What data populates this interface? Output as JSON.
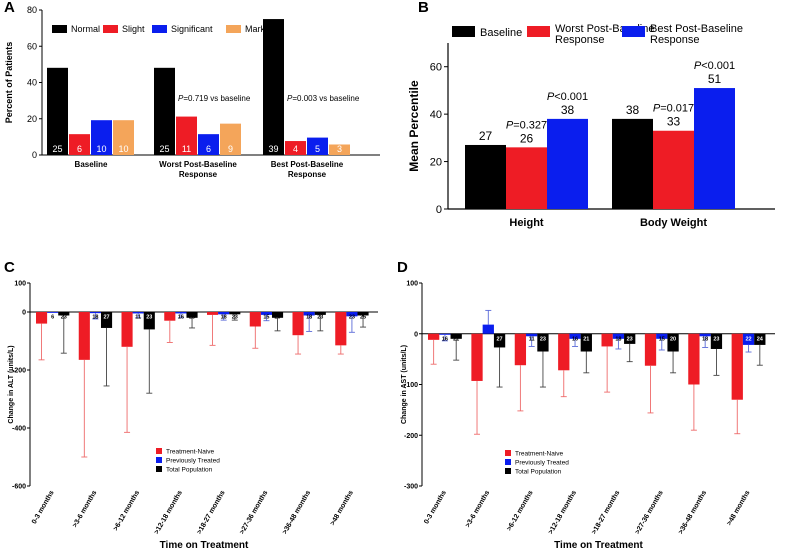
{
  "colors": {
    "black": "#000000",
    "red": "#ee1c25",
    "blue": "#0a1eee",
    "orange": "#f4a55a",
    "errRed": "#ee6a6a",
    "errBlue": "#5a6ad8",
    "errBlack": "#444444"
  },
  "chart_data": [
    {
      "id": "A",
      "panel_label": "A",
      "type": "bar",
      "ylabel": "Percent of Patients",
      "ylim": [
        0,
        80
      ],
      "yticks": [
        "0",
        "20",
        "40",
        "60",
        "80"
      ],
      "legend": [
        "Normal",
        "Slight",
        "Significant",
        "Marked"
      ],
      "categories": [
        "Baseline",
        "Worst Post-Baseline Response",
        "Best Post-Baseline Response"
      ],
      "category_lines": [
        [
          "Baseline"
        ],
        [
          "Worst Post-Baseline",
          "Response"
        ],
        [
          "Best Post-Baseline",
          "Response"
        ]
      ],
      "series": [
        {
          "name": "Normal",
          "values": [
            48.1,
            48.1,
            75.0
          ],
          "counts": [
            "25",
            "25",
            "39"
          ]
        },
        {
          "name": "Slight",
          "values": [
            11.5,
            21.2,
            7.7
          ],
          "counts": [
            "6",
            "11",
            "4"
          ]
        },
        {
          "name": "Significant",
          "values": [
            19.2,
            11.5,
            9.6
          ],
          "counts": [
            "10",
            "6",
            "5"
          ]
        },
        {
          "name": "Marked",
          "values": [
            19.2,
            17.3,
            5.8
          ],
          "counts": [
            "10",
            "9",
            "3"
          ]
        }
      ],
      "annotations": [
        {
          "category": 1,
          "p": "P",
          "text": "=0.719 vs baseline"
        },
        {
          "category": 2,
          "p": "P",
          "text": "=0.003 vs baseline"
        }
      ]
    },
    {
      "id": "B",
      "panel_label": "B",
      "type": "bar",
      "ylabel": "Mean Percentile",
      "ylim": [
        0,
        70
      ],
      "yticks": [
        "0",
        "20",
        "40",
        "60"
      ],
      "legend": [
        "Baseline",
        "Worst Post-Baseline Response",
        "Best Post-Baseline Response"
      ],
      "legend_lines": [
        [
          "Baseline"
        ],
        [
          "Worst Post-Baseline",
          "Response"
        ],
        [
          "Best Post-Baseline",
          "Response"
        ]
      ],
      "categories": [
        "Height",
        "Body Weight"
      ],
      "series": [
        {
          "name": "Baseline",
          "values": [
            27,
            38
          ],
          "labels": [
            "27",
            "38"
          ]
        },
        {
          "name": "Worst Post-Baseline Response",
          "values": [
            26,
            33
          ],
          "labels": [
            "26",
            "33"
          ]
        },
        {
          "name": "Best Post-Baseline Response",
          "values": [
            38,
            51
          ],
          "labels": [
            "38",
            "51"
          ]
        }
      ],
      "pvalues": [
        {
          "category": 0,
          "series": 1,
          "p": "P",
          "text": "=0.327"
        },
        {
          "category": 0,
          "series": 2,
          "p": "P",
          "text": "<0.001"
        },
        {
          "category": 1,
          "series": 1,
          "p": "P",
          "text": "=0.017"
        },
        {
          "category": 1,
          "series": 2,
          "p": "P",
          "text": "<0.001"
        }
      ]
    },
    {
      "id": "C",
      "panel_label": "C",
      "type": "bar",
      "ylabel": "Change in ALT (units/L)",
      "xlabel": "Time on Treatment",
      "ylim": [
        -600,
        100
      ],
      "yticks": [
        "-600",
        "-400",
        "-200",
        "0",
        "100"
      ],
      "yticks_values": [
        -600,
        -400,
        -200,
        0,
        100
      ],
      "categories": [
        "0-3 months",
        ">3-6 months",
        ">6-12 months",
        ">12-18 months",
        ">18-27 months",
        ">27-36 months",
        ">36-48 months",
        ">48 months"
      ],
      "legend": [
        "Treatment-Naive",
        "Previously Treated",
        "Total Population"
      ],
      "series": [
        {
          "name": "Treatment-Naive",
          "values": [
            -40,
            -165,
            -120,
            -30,
            -10,
            -50,
            -80,
            -115
          ],
          "errors": [
            125,
            335,
            295,
            75,
            105,
            75,
            65,
            30
          ],
          "counts": [
            "",
            "",
            "",
            "",
            "",
            "",
            "",
            ""
          ]
        },
        {
          "name": "Previously Treated",
          "values": [
            -3,
            -4,
            -5,
            -5,
            -8,
            -10,
            -12,
            -15
          ],
          "errors": [
            0,
            20,
            15,
            15,
            20,
            20,
            55,
            55
          ],
          "counts": [
            "6",
            "18",
            "11",
            "16",
            "18",
            "15",
            "18",
            "23"
          ]
        },
        {
          "name": "Total Population",
          "values": [
            -12,
            -55,
            -60,
            -20,
            -8,
            -20,
            -10,
            -12
          ],
          "errors": [
            130,
            200,
            220,
            35,
            20,
            45,
            55,
            40
          ],
          "counts": [
            "23",
            "27",
            "23",
            "25",
            "23",
            "20",
            "23",
            "25"
          ]
        }
      ]
    },
    {
      "id": "D",
      "panel_label": "D",
      "type": "bar",
      "ylabel": "Change in AST (units/L)",
      "xlabel": "Time on Treatment",
      "ylim": [
        -300,
        100
      ],
      "yticks": [
        "-300",
        "-200",
        "-100",
        "0",
        "100"
      ],
      "yticks_values": [
        -300,
        -200,
        -100,
        0,
        100
      ],
      "categories": [
        "0-3 months",
        ">3-6 months",
        ">6-12 months",
        ">12-18 months",
        ">18-27 months",
        ">27-36 months",
        ">36-48 months",
        ">48 months"
      ],
      "legend": [
        "Treatment-Naive",
        "Previously Treated",
        "Total Population"
      ],
      "series": [
        {
          "name": "Treatment-Naive",
          "values": [
            -12,
            -93,
            -62,
            -72,
            -25,
            -63,
            -100,
            -130
          ],
          "errors": [
            48,
            105,
            90,
            52,
            90,
            93,
            90,
            67
          ],
          "counts": [
            "",
            "",
            "",
            "",
            "",
            "",
            "",
            ""
          ]
        },
        {
          "name": "Previously Treated",
          "values": [
            -2,
            18,
            -5,
            -10,
            -10,
            -10,
            -5,
            -22
          ],
          "errors": [
            12,
            28,
            20,
            15,
            20,
            22,
            22,
            14
          ],
          "counts": [
            "16",
            "18",
            "11",
            "16",
            "18",
            "15",
            "18",
            "22"
          ]
        },
        {
          "name": "Total Population",
          "values": [
            -10,
            -27,
            -35,
            -35,
            -20,
            -35,
            -30,
            -22
          ],
          "errors": [
            42,
            78,
            70,
            42,
            35,
            42,
            52,
            40
          ],
          "counts": [
            "21",
            "27",
            "23",
            "21",
            "23",
            "20",
            "23",
            "24"
          ]
        }
      ]
    }
  ]
}
